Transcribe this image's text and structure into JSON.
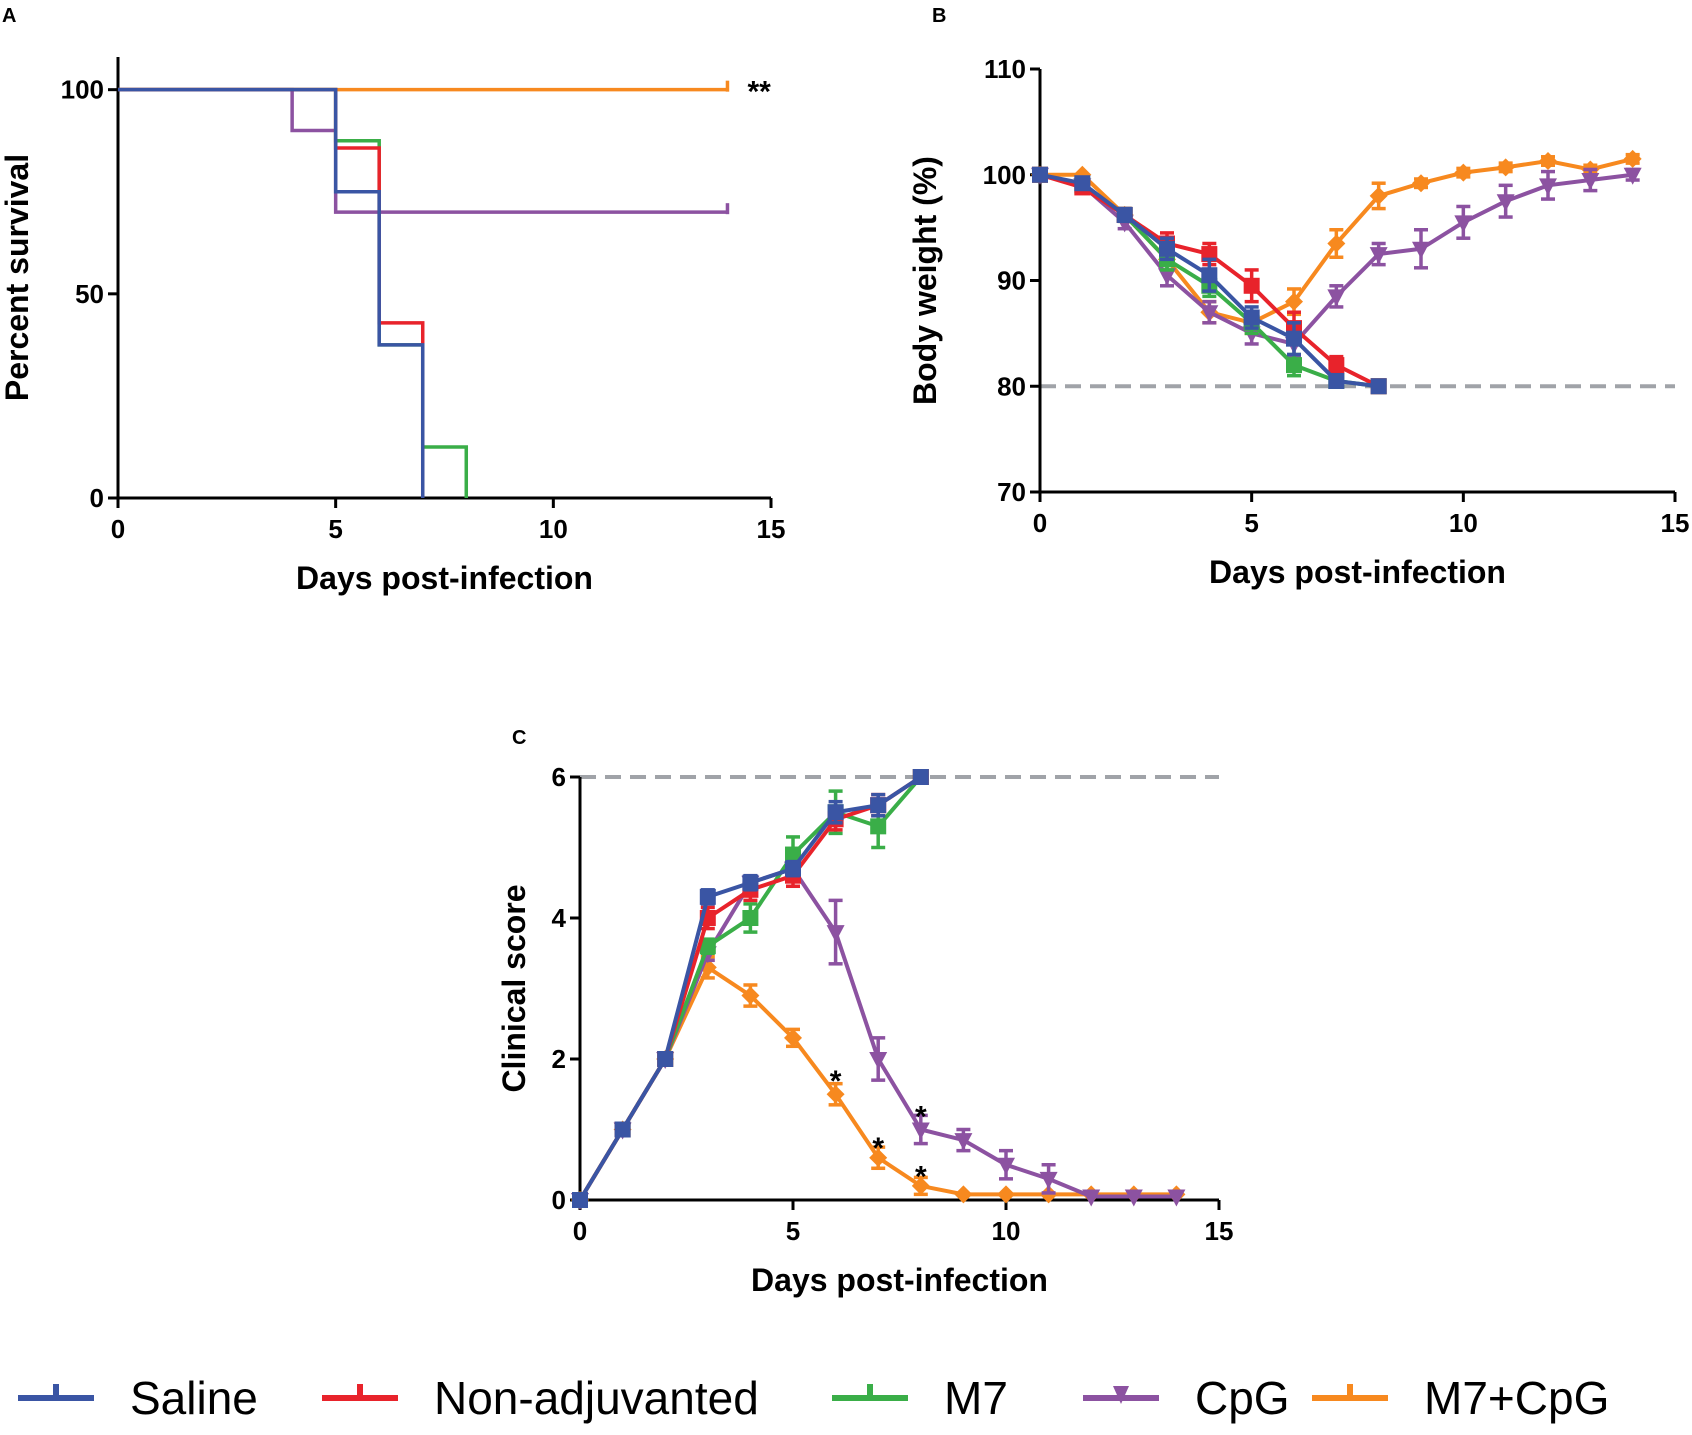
{
  "colors": {
    "Saline": "#3a55a4",
    "Non-adjuvanted": "#e8232b",
    "M7": "#3aae48",
    "CpG": "#8c52a1",
    "M7+CpG": "#f7891f",
    "threshold": "#a0a3a8",
    "axis": "#000000"
  },
  "legend": {
    "items": [
      {
        "label": "Saline",
        "color": "#3a55a4"
      },
      {
        "label": "Non-adjuvanted",
        "color": "#e8232b"
      },
      {
        "label": "M7",
        "color": "#3aae48"
      },
      {
        "label": "CpG",
        "color": "#8c52a1"
      },
      {
        "label": "M7+CpG",
        "color": "#f7891f"
      }
    ]
  },
  "chart_data": [
    {
      "panel": "A",
      "type": "line",
      "subtype": "step-survival",
      "xlabel": "Days post-infection",
      "ylabel": "Percent survival",
      "xlim": [
        0,
        15
      ],
      "ylim": [
        0,
        108
      ],
      "xticks": [
        0,
        5,
        10,
        15
      ],
      "yticks": [
        0,
        50,
        100
      ],
      "annotations": [
        {
          "text": "**",
          "x": 14,
          "y": 100
        }
      ],
      "series": [
        {
          "name": "M7+CpG",
          "steps": [
            [
              0,
              100
            ],
            [
              14,
              100
            ]
          ],
          "censor_tick": [
            14,
            100
          ]
        },
        {
          "name": "CpG",
          "steps": [
            [
              0,
              100
            ],
            [
              4,
              90
            ],
            [
              5,
              70
            ],
            [
              14,
              70
            ]
          ],
          "censor_tick": [
            14,
            70
          ]
        },
        {
          "name": "M7",
          "steps": [
            [
              0,
              100
            ],
            [
              5,
              87.5
            ],
            [
              6,
              37.5
            ],
            [
              7,
              12.5
            ],
            [
              8,
              0
            ]
          ]
        },
        {
          "name": "Non-adjuvanted",
          "steps": [
            [
              0,
              100
            ],
            [
              5,
              85.7
            ],
            [
              6,
              42.9
            ],
            [
              7,
              0
            ]
          ]
        },
        {
          "name": "Saline",
          "steps": [
            [
              0,
              100
            ],
            [
              5,
              75
            ],
            [
              6,
              37.5
            ],
            [
              7,
              0
            ]
          ]
        }
      ]
    },
    {
      "panel": "B",
      "type": "line",
      "xlabel": "Days post-infection",
      "ylabel": "Body weight (%)",
      "xlim": [
        0,
        15
      ],
      "ylim": [
        70,
        110
      ],
      "xticks": [
        0,
        5,
        10,
        15
      ],
      "yticks": [
        70,
        80,
        90,
        100,
        110
      ],
      "threshold": 80,
      "series": [
        {
          "name": "M7+CpG",
          "marker": "diamond",
          "x": [
            0,
            1,
            2,
            3,
            4,
            5,
            6,
            7,
            8,
            9,
            10,
            11,
            12,
            13,
            14
          ],
          "y": [
            100,
            100,
            96.2,
            92,
            87,
            86,
            88,
            93.5,
            98,
            99.2,
            100.2,
            100.7,
            101.3,
            100.5,
            101.5
          ],
          "err": [
            0,
            0,
            0.6,
            1,
            1,
            1,
            1.2,
            1.3,
            1.2,
            0.4,
            0.4,
            0.4,
            0.4,
            0.4,
            0.4
          ]
        },
        {
          "name": "CpG",
          "marker": "triangle-down",
          "x": [
            0,
            1,
            2,
            3,
            4,
            5,
            6,
            7,
            8,
            9,
            10,
            11,
            12,
            13,
            14
          ],
          "y": [
            100,
            99,
            95.5,
            90.5,
            87,
            85,
            84,
            88.5,
            92.5,
            93,
            95.5,
            97.5,
            99,
            99.5,
            100
          ],
          "err": [
            0,
            0.4,
            0.6,
            1,
            1,
            1,
            1.2,
            1,
            1,
            1.8,
            1.5,
            1.5,
            1.3,
            1,
            0.5
          ]
        },
        {
          "name": "M7",
          "marker": "square",
          "x": [
            0,
            1,
            2,
            3,
            4,
            5,
            6,
            7,
            8
          ],
          "y": [
            100,
            99,
            96.2,
            92,
            89.5,
            86,
            82,
            80.5,
            80
          ],
          "err": [
            0,
            0.4,
            0.6,
            1,
            1,
            1,
            1,
            0.5,
            0
          ]
        },
        {
          "name": "Non-adjuvanted",
          "marker": "square",
          "x": [
            0,
            1,
            2,
            3,
            4,
            5,
            6,
            7,
            8
          ],
          "y": [
            100,
            98.8,
            96.2,
            93.5,
            92.5,
            89.5,
            85.5,
            82,
            80
          ],
          "err": [
            0,
            0.4,
            0.6,
            1,
            1,
            1.5,
            1.5,
            0.8,
            0
          ]
        },
        {
          "name": "Saline",
          "marker": "square",
          "x": [
            0,
            1,
            2,
            3,
            4,
            5,
            6,
            7,
            8
          ],
          "y": [
            100,
            99.2,
            96.2,
            93,
            90.5,
            86.5,
            84.5,
            80.5,
            80
          ],
          "err": [
            0,
            0.4,
            0.6,
            1,
            1.5,
            1,
            1.5,
            0.5,
            0
          ]
        }
      ]
    },
    {
      "panel": "C",
      "type": "line",
      "xlabel": "Days post-infection",
      "ylabel": "Clinical score",
      "xlim": [
        0,
        15
      ],
      "ylim": [
        0,
        6
      ],
      "xticks": [
        0,
        5,
        10,
        15
      ],
      "yticks": [
        0,
        2,
        4,
        6
      ],
      "threshold": 6,
      "annotations": [
        {
          "text": "*",
          "x": 6,
          "y": 1.8
        },
        {
          "text": "*",
          "x": 7,
          "y": 0.85
        },
        {
          "text": "*",
          "x": 8,
          "y": 1.3
        },
        {
          "text": "*",
          "x": 8,
          "y": 0.45
        }
      ],
      "series": [
        {
          "name": "M7+CpG",
          "marker": "diamond",
          "x": [
            0,
            1,
            2,
            3,
            4,
            5,
            6,
            7,
            8,
            9,
            10,
            11,
            12,
            13,
            14
          ],
          "y": [
            0,
            1,
            2,
            3.3,
            2.9,
            2.3,
            1.5,
            0.6,
            0.2,
            0.08,
            0.08,
            0.08,
            0.08,
            0.08,
            0.08
          ],
          "err": [
            0,
            0,
            0,
            0.15,
            0.15,
            0.12,
            0.15,
            0.15,
            0.12,
            0,
            0,
            0,
            0,
            0,
            0
          ]
        },
        {
          "name": "CpG",
          "marker": "triangle-down",
          "x": [
            0,
            1,
            2,
            3,
            4,
            5,
            6,
            7,
            8,
            9,
            10,
            11,
            12,
            13,
            14
          ],
          "y": [
            0,
            1,
            2,
            3.5,
            4.5,
            4.7,
            3.8,
            2,
            1,
            0.85,
            0.5,
            0.3,
            0.05,
            0.05,
            0.05
          ],
          "err": [
            0,
            0,
            0,
            0.1,
            0.1,
            0.1,
            0.45,
            0.3,
            0.2,
            0.15,
            0.2,
            0.2,
            0,
            0,
            0
          ]
        },
        {
          "name": "M7",
          "marker": "square",
          "x": [
            0,
            1,
            2,
            3,
            4,
            5,
            6,
            7,
            8
          ],
          "y": [
            0,
            1,
            2,
            3.6,
            4,
            4.9,
            5.5,
            5.3,
            6
          ],
          "err": [
            0,
            0,
            0,
            0.1,
            0.2,
            0.25,
            0.3,
            0.3,
            0
          ]
        },
        {
          "name": "Non-adjuvanted",
          "marker": "square",
          "x": [
            0,
            1,
            2,
            3,
            4,
            5,
            6,
            7,
            8
          ],
          "y": [
            0,
            1,
            2,
            4,
            4.4,
            4.6,
            5.4,
            5.6,
            6
          ],
          "err": [
            0,
            0,
            0,
            0.15,
            0.15,
            0.15,
            0.15,
            0.15,
            0
          ]
        },
        {
          "name": "Saline",
          "marker": "square",
          "x": [
            0,
            1,
            2,
            3,
            4,
            5,
            6,
            7,
            8
          ],
          "y": [
            0,
            1,
            2,
            4.3,
            4.5,
            4.7,
            5.5,
            5.6,
            6
          ],
          "err": [
            0,
            0,
            0,
            0.1,
            0.1,
            0.1,
            0.15,
            0.15,
            0
          ]
        }
      ]
    }
  ]
}
